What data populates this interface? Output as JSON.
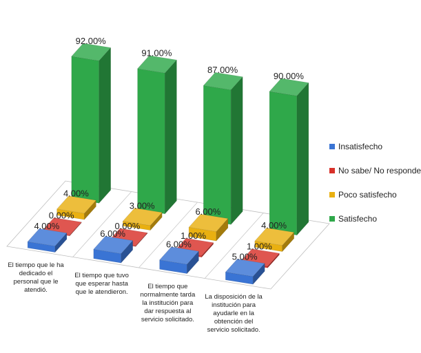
{
  "chart_data": {
    "type": "bar",
    "categories": [
      "El tiempo que le ha dedicado el personal que le atendió.",
      "El tiempo que tuvo que esperar hasta que le atendieron.",
      "El tiempo que normalmente tarda la institución para dar respuesta al servicio solicitado.",
      "La disposición de la institución para ayudarle en la obtención del servicio solicitado."
    ],
    "category_lines": [
      [
        "El tiempo que le ha",
        "dedicado el",
        "personal que le",
        "atendió."
      ],
      [
        "El tiempo que tuvo",
        "que esperar hasta",
        "que le atendieron."
      ],
      [
        "El tiempo que",
        "normalmente tarda",
        "la institución para",
        "dar respuesta al",
        "servicio solicitado."
      ],
      [
        "La disposición de la",
        "institución para",
        "ayudarle en la",
        "obtención del",
        "servicio solicitado."
      ]
    ],
    "series": [
      {
        "name": "Insatisfecho",
        "color": "#3a74d4",
        "values": [
          4,
          6,
          6,
          5
        ],
        "labels": [
          "4.00%",
          "6.00%",
          "6.00%",
          "5.00%"
        ]
      },
      {
        "name": "No sabe/ No responde",
        "color": "#d8312a",
        "values": [
          0,
          0,
          1,
          1
        ],
        "labels": [
          "0.00%",
          "0.00%",
          "1.00%",
          "1.00%"
        ]
      },
      {
        "name": "Poco satisfecho",
        "color": "#e9b011",
        "values": [
          4,
          3,
          6,
          4
        ],
        "labels": [
          "4.00%",
          "3.00%",
          "6.00%",
          "4.00%"
        ]
      },
      {
        "name": "Satisfecho",
        "color": "#2fa84a",
        "values": [
          92,
          91,
          87,
          90
        ],
        "labels": [
          "92.00%",
          "91.00%",
          "87.00%",
          "90.00%"
        ]
      }
    ],
    "legend_position": "right",
    "grid": false
  }
}
